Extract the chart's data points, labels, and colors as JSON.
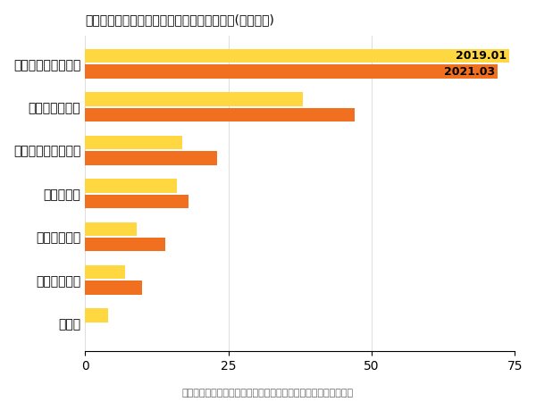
{
  "title": "どのような目的で地図アプリを使いますか？(複数回答)",
  "categories": [
    "経路検索やカーナビ",
    "店舗情報の確認",
    "ウェブサイトの確認",
    "写真の確認",
    "口コミの確認",
    "電話を掛ける",
    "その他"
  ],
  "values_2019": [
    74,
    38,
    17,
    16,
    9,
    7,
    4
  ],
  "values_2021": [
    72,
    47,
    23,
    18,
    14,
    10,
    0
  ],
  "color_2019": "#FFD740",
  "color_2021": "#F07020",
  "label_2019": "2019.01",
  "label_2021": "2021.03",
  "xlim": [
    0,
    75
  ],
  "xticks": [
    0,
    25,
    50,
    75
  ],
  "footnote": "株式会社エフェクチュアルー「地図アプリの利用に関する調査」",
  "background_color": "#ffffff",
  "title_fontsize": 14,
  "label_fontsize": 10,
  "tick_fontsize": 10,
  "footnote_fontsize": 8,
  "bar_height": 0.32,
  "bar_gap": 0.04
}
